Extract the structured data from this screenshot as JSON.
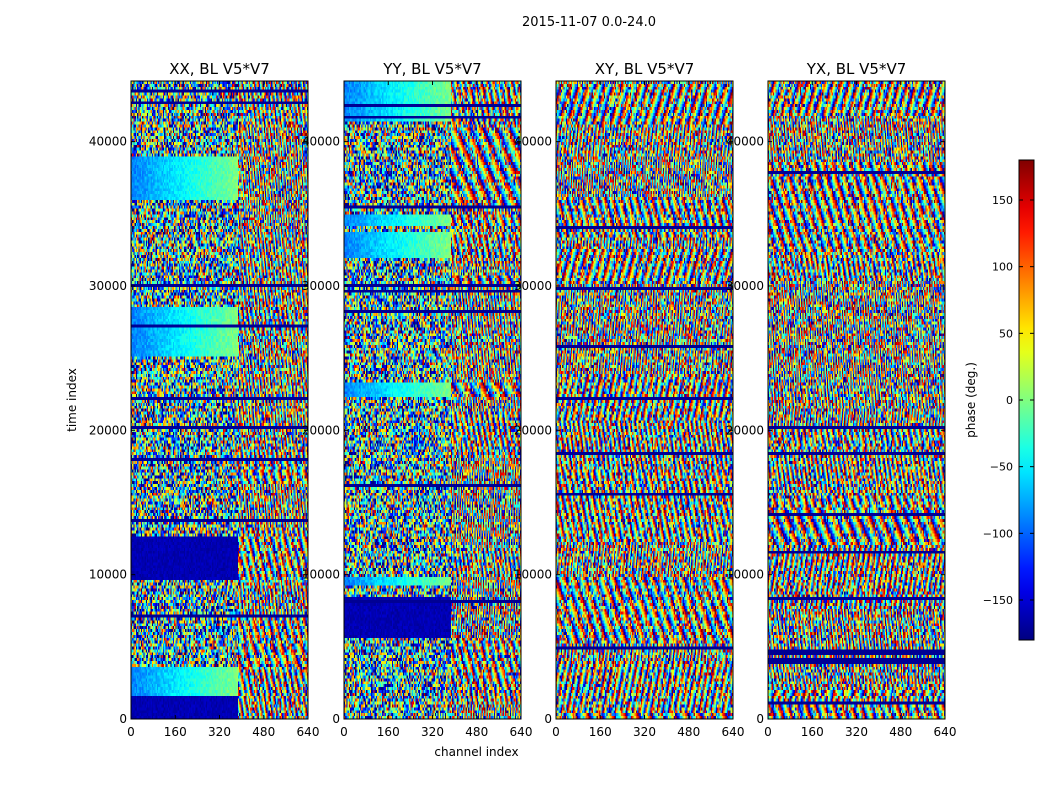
{
  "figure": {
    "suptitle": "2015-11-07 0.0-24.0"
  },
  "chart_data": {
    "type": "heatmap",
    "colormap": "jet",
    "xlabel": "channel index",
    "ylabel": "time index",
    "xlim": [
      0,
      640
    ],
    "ylim": [
      0,
      44200
    ],
    "xticks": [
      0,
      160,
      320,
      480,
      640
    ],
    "yticks": [
      0,
      10000,
      20000,
      30000,
      40000
    ],
    "xtick_labels": [
      "0",
      "160",
      "320",
      "480",
      "640"
    ],
    "ytick_labels": [
      "0",
      "10000",
      "20000",
      "30000",
      "40000"
    ],
    "panels": [
      {
        "title": "XX, BL V5*V7",
        "show_ylabel": true,
        "show_xlabel": false,
        "seed": 11
      },
      {
        "title": "YY, BL V5*V7",
        "show_ylabel": false,
        "show_xlabel": true,
        "seed": 23
      },
      {
        "title": "XY, BL V5*V7",
        "show_ylabel": false,
        "show_xlabel": false,
        "seed": 37
      },
      {
        "title": "YX, BL V5*V7",
        "show_ylabel": false,
        "show_xlabel": false,
        "seed": 53
      }
    ],
    "colorbar": {
      "label": "phase (deg.)",
      "vmin": -180,
      "vmax": 180,
      "ticks": [
        -150,
        -100,
        -50,
        0,
        50,
        100,
        150
      ],
      "tick_labels": [
        "−150",
        "−100",
        "−50",
        "0",
        "50",
        "100",
        "150"
      ]
    }
  }
}
